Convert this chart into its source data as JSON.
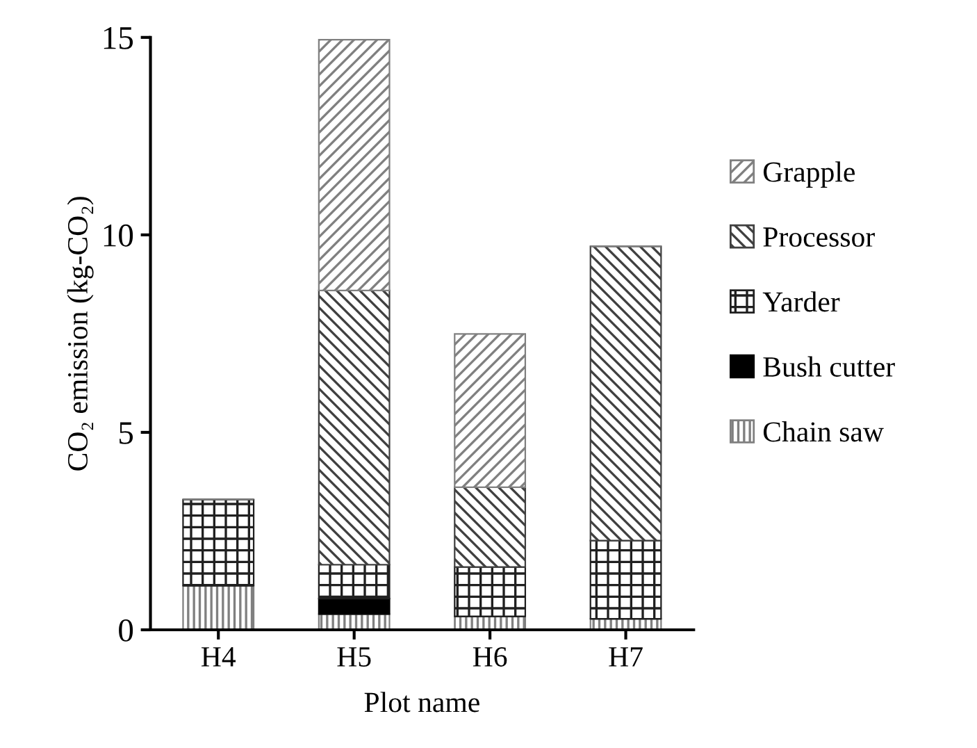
{
  "chart_data": {
    "type": "bar",
    "stacked": true,
    "xlabel": "Plot name",
    "ylabel": "CO₂ emission (kg-CO₂)",
    "categories": [
      "H4",
      "H5",
      "H6",
      "H7"
    ],
    "series": [
      {
        "name": "Chain saw",
        "color": "#808080",
        "values": [
          1.12,
          0.4,
          0.34,
          0.28
        ]
      },
      {
        "name": "Bush cutter",
        "color": "#000000",
        "values": [
          0,
          0.39,
          0,
          0
        ]
      },
      {
        "name": "Yarder",
        "color": "#202020",
        "values": [
          2.18,
          0.86,
          1.25,
          1.98
        ]
      },
      {
        "name": "Processor",
        "color": "#404040",
        "values": [
          0,
          6.94,
          2.02,
          7.45
        ]
      },
      {
        "name": "Grapple",
        "color": "#808080",
        "values": [
          0,
          6.35,
          3.88,
          0
        ]
      }
    ],
    "ylim": [
      0,
      15
    ],
    "yticks": [
      0,
      5,
      10,
      15
    ],
    "grid": false,
    "legend": "right"
  }
}
